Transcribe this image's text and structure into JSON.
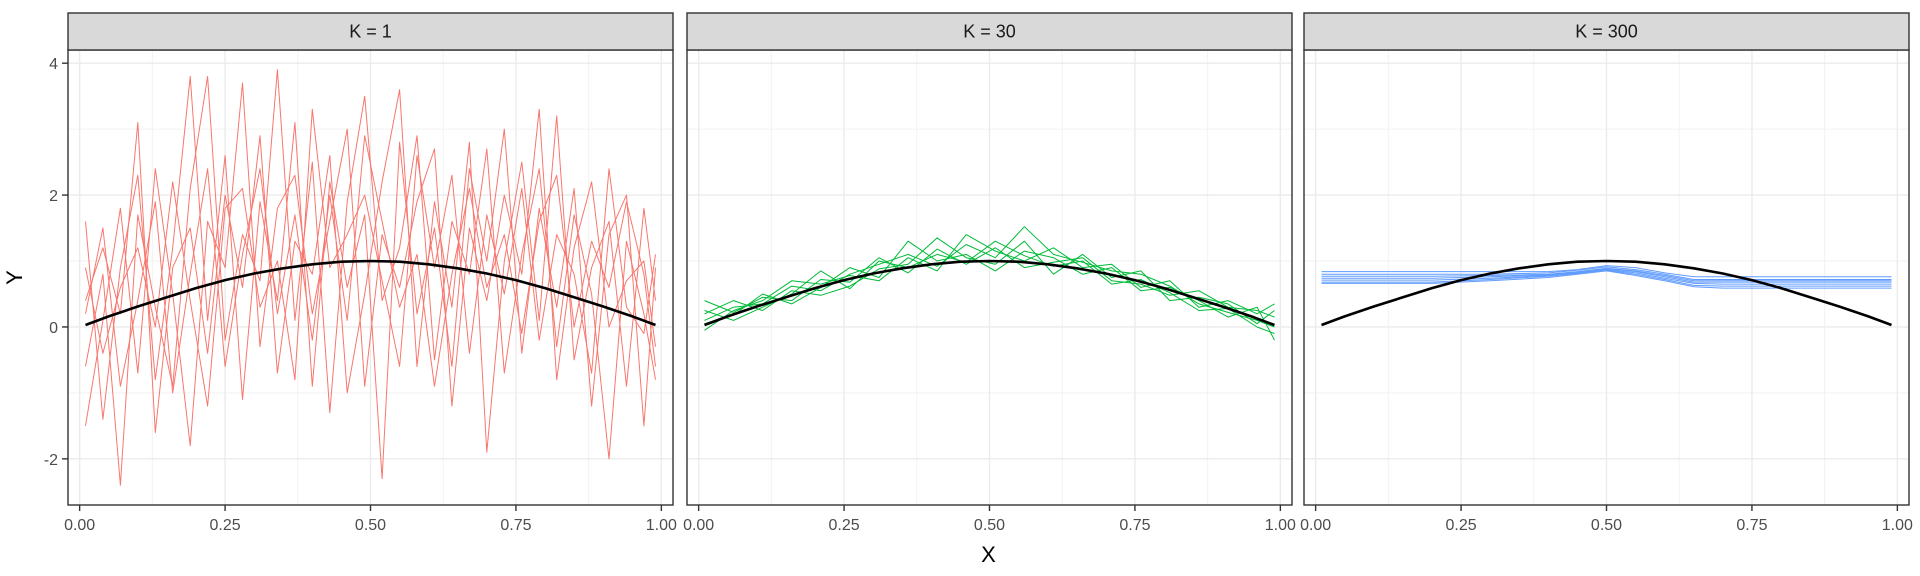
{
  "chart_data": {
    "type": "line",
    "xlabel": "X",
    "ylabel": "Y",
    "xlim": [
      -0.02,
      1.02
    ],
    "ylim": [
      -2.7,
      4.2
    ],
    "x_ticks": [
      "0.00",
      "0.25",
      "0.50",
      "0.75",
      "1.00"
    ],
    "y_ticks": [
      "-2",
      "0",
      "2",
      "4"
    ],
    "grid": true,
    "legend": "none",
    "truth_curve": {
      "color": "#000000",
      "x": [
        0.01,
        0.05,
        0.1,
        0.15,
        0.2,
        0.25,
        0.3,
        0.35,
        0.4,
        0.45,
        0.5,
        0.55,
        0.6,
        0.65,
        0.7,
        0.75,
        0.8,
        0.85,
        0.9,
        0.95,
        0.99
      ],
      "y": [
        0.03,
        0.16,
        0.31,
        0.45,
        0.59,
        0.71,
        0.81,
        0.89,
        0.95,
        0.99,
        1.0,
        0.99,
        0.95,
        0.89,
        0.81,
        0.71,
        0.59,
        0.45,
        0.31,
        0.16,
        0.03
      ]
    },
    "panels": [
      {
        "strip": "K = 1",
        "color": "#F8766D",
        "series": [
          {
            "x": [
              0.01,
              0.04,
              0.07,
              0.1,
              0.13,
              0.16,
              0.19,
              0.22,
              0.25,
              0.28,
              0.31,
              0.34,
              0.37,
              0.4,
              0.43,
              0.46,
              0.49,
              0.52,
              0.55,
              0.58,
              0.61,
              0.64,
              0.67,
              0.7,
              0.73,
              0.76,
              0.79,
              0.82,
              0.85,
              0.88,
              0.91,
              0.94,
              0.97,
              0.99
            ],
            "y": [
              1.6,
              -1.4,
              0.9,
              2.3,
              -0.8,
              1.2,
              3.8,
              0.1,
              2.6,
              -1.1,
              1.9,
              0.4,
              3.1,
              -0.9,
              2.2,
              0.6,
              1.7,
              -2.3,
              2.8,
              0.2,
              1.5,
              -0.6,
              2.4,
              1.0,
              3.0,
              -0.4,
              1.8,
              0.3,
              2.1,
              -1.2,
              1.4,
              2.0,
              -1.5,
              0.9
            ]
          },
          {
            "x": [
              0.01,
              0.04,
              0.07,
              0.1,
              0.13,
              0.16,
              0.19,
              0.22,
              0.25,
              0.28,
              0.31,
              0.34,
              0.37,
              0.4,
              0.43,
              0.46,
              0.49,
              0.52,
              0.55,
              0.58,
              0.61,
              0.64,
              0.67,
              0.7,
              0.73,
              0.76,
              0.79,
              0.82,
              0.85,
              0.88,
              0.91,
              0.94,
              0.97,
              0.99
            ],
            "y": [
              -0.6,
              0.8,
              -2.4,
              1.7,
              0.3,
              -0.9,
              2.1,
              3.8,
              -0.2,
              1.4,
              0.7,
              3.9,
              0.1,
              2.5,
              -1.3,
              1.9,
              3.5,
              0.4,
              1.2,
              2.9,
              -0.5,
              1.6,
              0.8,
              2.7,
              -0.7,
              1.1,
              2.4,
              -0.3,
              1.7,
              0.5,
              -2.0,
              1.3,
              0.2,
              -0.8
            ]
          },
          {
            "x": [
              0.01,
              0.04,
              0.07,
              0.1,
              0.13,
              0.16,
              0.19,
              0.22,
              0.25,
              0.28,
              0.31,
              0.34,
              0.37,
              0.4,
              0.43,
              0.46,
              0.49,
              0.52,
              0.55,
              0.58,
              0.61,
              0.64,
              0.67,
              0.7,
              0.73,
              0.76,
              0.79,
              0.82,
              0.85,
              0.88,
              0.91,
              0.94,
              0.97,
              0.99
            ],
            "y": [
              0.4,
              1.2,
              0.2,
              3.1,
              -1.6,
              0.9,
              1.5,
              -0.4,
              2.0,
              0.6,
              2.9,
              -0.7,
              1.3,
              0.8,
              2.6,
              -1.0,
              0.5,
              2.2,
              3.6,
              -0.6,
              1.9,
              0.3,
              2.8,
              -1.9,
              1.0,
              2.5,
              0.1,
              3.2,
              -0.5,
              0.9,
              1.6,
              -0.9,
              1.8,
              0.4
            ]
          },
          {
            "x": [
              0.01,
              0.04,
              0.07,
              0.1,
              0.13,
              0.16,
              0.19,
              0.22,
              0.25,
              0.28,
              0.31,
              0.34,
              0.37,
              0.4,
              0.43,
              0.46,
              0.49,
              0.52,
              0.55,
              0.58,
              0.61,
              0.64,
              0.67,
              0.7,
              0.73,
              0.76,
              0.79,
              0.82,
              0.85,
              0.88,
              0.91,
              0.94,
              0.97,
              0.99
            ],
            "y": [
              -1.5,
              0.1,
              1.8,
              -0.7,
              2.4,
              0.5,
              -1.8,
              1.6,
              0.9,
              3.7,
              -0.3,
              1.8,
              2.3,
              0.2,
              1.6,
              3.0,
              -0.9,
              1.4,
              0.6,
              1.9,
              2.7,
              -1.2,
              1.5,
              0.4,
              2.0,
              0.8,
              3.3,
              -0.8,
              1.2,
              2.2,
              0.0,
              0.7,
              1.0,
              -0.3
            ]
          },
          {
            "x": [
              0.01,
              0.04,
              0.07,
              0.1,
              0.13,
              0.16,
              0.19,
              0.22,
              0.25,
              0.28,
              0.31,
              0.34,
              0.37,
              0.4,
              0.43,
              0.46,
              0.49,
              0.52,
              0.55,
              0.58,
              0.61,
              0.64,
              0.67,
              0.7,
              0.73,
              0.76,
              0.79,
              0.82,
              0.85,
              0.88,
              0.91,
              0.94,
              0.97,
              0.99
            ],
            "y": [
              0.9,
              -0.4,
              0.6,
              1.2,
              0.0,
              2.2,
              0.4,
              -1.2,
              1.8,
              2.1,
              0.3,
              1.0,
              -0.8,
              3.3,
              0.9,
              1.4,
              2.0,
              0.7,
              -0.6,
              2.6,
              0.9,
              2.3,
              -0.4,
              1.7,
              0.5,
              2.1,
              -0.2,
              1.4,
              0.8,
              -0.7,
              2.4,
              0.3,
              -0.1,
              1.1
            ]
          },
          {
            "x": [
              0.01,
              0.04,
              0.07,
              0.1,
              0.13,
              0.16,
              0.19,
              0.22,
              0.25,
              0.28,
              0.31,
              0.34,
              0.37,
              0.4,
              0.43,
              0.46,
              0.49,
              0.52,
              0.55,
              0.58,
              0.61,
              0.64,
              0.67,
              0.7,
              0.73,
              0.76,
              0.79,
              0.82,
              0.85,
              0.88,
              0.91,
              0.94,
              0.97,
              0.99
            ],
            "y": [
              0.2,
              1.5,
              -0.9,
              0.4,
              1.9,
              -1.0,
              0.8,
              2.4,
              -0.6,
              1.1,
              2.4,
              0.2,
              1.7,
              -0.2,
              2.0,
              0.1,
              2.9,
              1.6,
              0.3,
              1.1,
              -0.9,
              0.8,
              2.1,
              0.6,
              1.4,
              -0.1,
              1.6,
              2.3,
              0.0,
              1.3,
              0.6,
              1.9,
              0.8,
              -0.6
            ]
          }
        ]
      },
      {
        "strip": "K = 30",
        "color": "#00BA38",
        "series": [
          {
            "x": [
              0.01,
              0.06,
              0.11,
              0.16,
              0.21,
              0.26,
              0.31,
              0.36,
              0.41,
              0.46,
              0.51,
              0.56,
              0.61,
              0.66,
              0.71,
              0.76,
              0.81,
              0.86,
              0.91,
              0.96,
              0.99
            ],
            "y": [
              0.1,
              0.3,
              0.35,
              0.62,
              0.55,
              0.8,
              0.95,
              1.1,
              0.92,
              1.25,
              1.05,
              1.52,
              1.1,
              0.98,
              0.85,
              0.8,
              0.62,
              0.35,
              0.22,
              0.1,
              0.0
            ]
          },
          {
            "x": [
              0.01,
              0.06,
              0.11,
              0.16,
              0.21,
              0.26,
              0.31,
              0.36,
              0.41,
              0.46,
              0.51,
              0.56,
              0.61,
              0.66,
              0.71,
              0.76,
              0.81,
              0.86,
              0.91,
              0.96,
              0.99
            ],
            "y": [
              0.4,
              0.22,
              0.45,
              0.4,
              0.72,
              0.68,
              1.05,
              0.82,
              1.18,
              0.95,
              1.2,
              0.9,
              0.98,
              1.05,
              0.7,
              0.65,
              0.48,
              0.55,
              0.3,
              0.25,
              0.15
            ]
          },
          {
            "x": [
              0.01,
              0.06,
              0.11,
              0.16,
              0.21,
              0.26,
              0.31,
              0.36,
              0.41,
              0.46,
              0.51,
              0.56,
              0.61,
              0.66,
              0.71,
              0.76,
              0.81,
              0.86,
              0.91,
              0.96,
              0.99
            ],
            "y": [
              0.05,
              0.18,
              0.5,
              0.35,
              0.6,
              0.9,
              0.75,
              1.3,
              1.0,
              1.1,
              0.85,
              1.15,
              1.05,
              0.8,
              0.9,
              0.55,
              0.6,
              0.4,
              0.15,
              0.3,
              -0.2
            ]
          },
          {
            "x": [
              0.01,
              0.06,
              0.11,
              0.16,
              0.21,
              0.26,
              0.31,
              0.36,
              0.41,
              0.46,
              0.51,
              0.56,
              0.61,
              0.66,
              0.71,
              0.76,
              0.81,
              0.86,
              0.91,
              0.96,
              0.99
            ],
            "y": [
              0.2,
              0.4,
              0.25,
              0.55,
              0.48,
              0.62,
              0.88,
              0.95,
              1.35,
              1.05,
              0.95,
              1.3,
              0.8,
              1.1,
              0.75,
              0.85,
              0.4,
              0.45,
              0.35,
              0.05,
              0.25
            ]
          },
          {
            "x": [
              0.01,
              0.06,
              0.11,
              0.16,
              0.21,
              0.26,
              0.31,
              0.36,
              0.41,
              0.46,
              0.51,
              0.56,
              0.61,
              0.66,
              0.71,
              0.76,
              0.81,
              0.86,
              0.91,
              0.96,
              0.99
            ],
            "y": [
              -0.05,
              0.25,
              0.4,
              0.7,
              0.65,
              0.78,
              0.7,
              1.05,
              0.85,
              1.4,
              1.15,
              1.0,
              1.2,
              0.9,
              0.95,
              0.6,
              0.7,
              0.3,
              0.4,
              0.2,
              0.35
            ]
          },
          {
            "x": [
              0.01,
              0.06,
              0.11,
              0.16,
              0.21,
              0.26,
              0.31,
              0.36,
              0.41,
              0.46,
              0.51,
              0.56,
              0.61,
              0.66,
              0.71,
              0.76,
              0.81,
              0.86,
              0.91,
              0.96,
              0.99
            ],
            "y": [
              0.25,
              0.1,
              0.3,
              0.5,
              0.85,
              0.58,
              1.0,
              0.9,
              1.1,
              0.98,
              1.3,
              1.08,
              0.92,
              1.0,
              0.65,
              0.72,
              0.52,
              0.25,
              0.28,
              0.0,
              -0.1
            ]
          }
        ]
      },
      {
        "strip": "K = 300",
        "color": "#619CFF",
        "series": [
          {
            "x": [
              0.01,
              0.2,
              0.3,
              0.4,
              0.45,
              0.5,
              0.55,
              0.6,
              0.65,
              0.7,
              0.8,
              0.99
            ],
            "y": [
              0.84,
              0.84,
              0.84,
              0.84,
              0.87,
              0.93,
              0.9,
              0.82,
              0.76,
              0.76,
              0.76,
              0.76
            ]
          },
          {
            "x": [
              0.01,
              0.2,
              0.3,
              0.4,
              0.45,
              0.5,
              0.55,
              0.6,
              0.65,
              0.7,
              0.8,
              0.99
            ],
            "y": [
              0.8,
              0.8,
              0.8,
              0.82,
              0.86,
              0.91,
              0.87,
              0.8,
              0.72,
              0.72,
              0.72,
              0.72
            ]
          },
          {
            "x": [
              0.01,
              0.2,
              0.3,
              0.4,
              0.45,
              0.5,
              0.55,
              0.6,
              0.65,
              0.7,
              0.8,
              0.99
            ],
            "y": [
              0.77,
              0.77,
              0.78,
              0.8,
              0.84,
              0.89,
              0.85,
              0.78,
              0.7,
              0.7,
              0.7,
              0.7
            ]
          },
          {
            "x": [
              0.01,
              0.2,
              0.3,
              0.4,
              0.45,
              0.5,
              0.55,
              0.6,
              0.65,
              0.7,
              0.8,
              0.99
            ],
            "y": [
              0.74,
              0.74,
              0.76,
              0.79,
              0.83,
              0.88,
              0.84,
              0.76,
              0.68,
              0.68,
              0.68,
              0.68
            ]
          },
          {
            "x": [
              0.01,
              0.2,
              0.3,
              0.4,
              0.45,
              0.5,
              0.55,
              0.6,
              0.65,
              0.7,
              0.8,
              0.99
            ],
            "y": [
              0.71,
              0.71,
              0.74,
              0.78,
              0.82,
              0.87,
              0.82,
              0.74,
              0.66,
              0.65,
              0.65,
              0.65
            ]
          },
          {
            "x": [
              0.01,
              0.2,
              0.3,
              0.4,
              0.45,
              0.5,
              0.55,
              0.6,
              0.65,
              0.7,
              0.8,
              0.99
            ],
            "y": [
              0.68,
              0.68,
              0.72,
              0.77,
              0.81,
              0.86,
              0.8,
              0.72,
              0.63,
              0.62,
              0.62,
              0.62
            ]
          },
          {
            "x": [
              0.01,
              0.2,
              0.3,
              0.4,
              0.45,
              0.5,
              0.55,
              0.6,
              0.65,
              0.7,
              0.8,
              0.99
            ],
            "y": [
              0.66,
              0.66,
              0.7,
              0.75,
              0.8,
              0.85,
              0.78,
              0.7,
              0.61,
              0.59,
              0.59,
              0.59
            ]
          }
        ]
      }
    ]
  }
}
